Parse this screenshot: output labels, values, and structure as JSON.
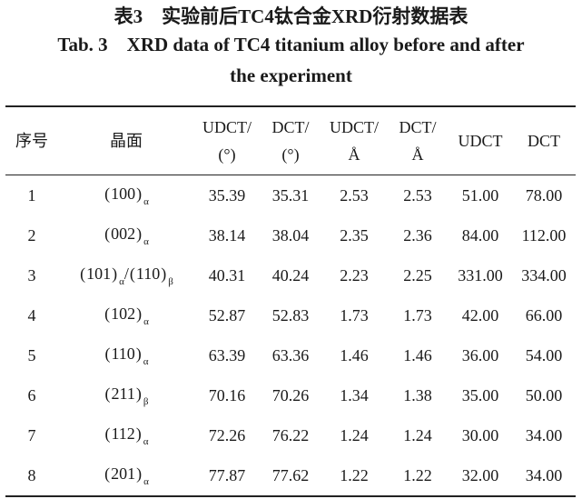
{
  "caption": {
    "cn": "表3　实验前后TC4钛合金XRD衍射数据表",
    "en_line1": "Tab. 3　XRD data of TC4 titanium alloy before and after",
    "en_line2": "the experiment"
  },
  "table": {
    "headers": [
      {
        "l1": "序号",
        "l2": ""
      },
      {
        "l1": "晶面",
        "l2": ""
      },
      {
        "l1": "UDCT/",
        "l2": "(°)"
      },
      {
        "l1": "DCT/",
        "l2": "(°)"
      },
      {
        "l1": "UDCT/",
        "l2": "Å"
      },
      {
        "l1": "DCT/",
        "l2": "Å"
      },
      {
        "l1": "UDCT",
        "l2": ""
      },
      {
        "l1": "DCT",
        "l2": ""
      }
    ],
    "rows": [
      {
        "no": "1",
        "plane": [
          {
            "hkl": "100",
            "phase": "α"
          }
        ],
        "c1": "35.39",
        "c2": "35.31",
        "c3": "2.53",
        "c4": "2.53",
        "c5": "51.00",
        "c6": "78.00"
      },
      {
        "no": "2",
        "plane": [
          {
            "hkl": "002",
            "phase": "α"
          }
        ],
        "c1": "38.14",
        "c2": "38.04",
        "c3": "2.35",
        "c4": "2.36",
        "c5": "84.00",
        "c6": "112.00"
      },
      {
        "no": "3",
        "plane": [
          {
            "hkl": "101",
            "phase": "α"
          },
          {
            "hkl": "110",
            "phase": "β"
          }
        ],
        "c1": "40.31",
        "c2": "40.24",
        "c3": "2.23",
        "c4": "2.25",
        "c5": "331.00",
        "c6": "334.00"
      },
      {
        "no": "4",
        "plane": [
          {
            "hkl": "102",
            "phase": "α"
          }
        ],
        "c1": "52.87",
        "c2": "52.83",
        "c3": "1.73",
        "c4": "1.73",
        "c5": "42.00",
        "c6": "66.00"
      },
      {
        "no": "5",
        "plane": [
          {
            "hkl": "110",
            "phase": "α"
          }
        ],
        "c1": "63.39",
        "c2": "63.36",
        "c3": "1.46",
        "c4": "1.46",
        "c5": "36.00",
        "c6": "54.00"
      },
      {
        "no": "6",
        "plane": [
          {
            "hkl": "211",
            "phase": "β"
          }
        ],
        "c1": "70.16",
        "c2": "70.26",
        "c3": "1.34",
        "c4": "1.38",
        "c5": "35.00",
        "c6": "50.00"
      },
      {
        "no": "7",
        "plane": [
          {
            "hkl": "112",
            "phase": "α"
          }
        ],
        "c1": "72.26",
        "c2": "76.22",
        "c3": "1.24",
        "c4": "1.24",
        "c5": "30.00",
        "c6": "34.00"
      },
      {
        "no": "8",
        "plane": [
          {
            "hkl": "201",
            "phase": "α"
          }
        ],
        "c1": "77.87",
        "c2": "77.62",
        "c3": "1.22",
        "c4": "1.22",
        "c5": "32.00",
        "c6": "34.00"
      }
    ]
  }
}
